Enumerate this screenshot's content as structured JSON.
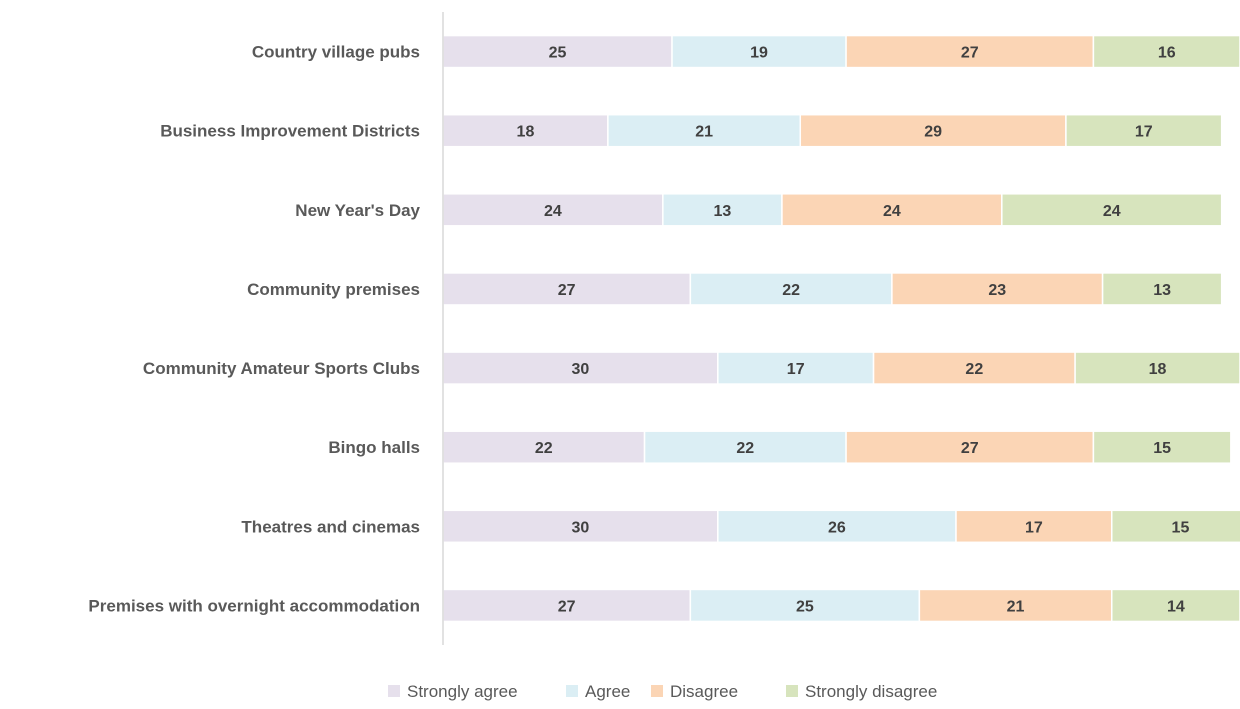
{
  "chart_data": {
    "type": "bar",
    "orientation": "horizontal",
    "stacked": true,
    "categories": [
      "Country village pubs",
      "Business Improvement Districts",
      "New Year's Day",
      "Community premises",
      "Community Amateur Sports Clubs",
      "Bingo halls",
      "Theatres and cinemas",
      "Premises with overnight accommodation"
    ],
    "series": [
      {
        "name": "Strongly agree",
        "color": "#e6e0ec",
        "values": [
          25,
          18,
          24,
          27,
          30,
          22,
          30,
          27
        ]
      },
      {
        "name": "Agree",
        "color": "#dbeef4",
        "values": [
          19,
          21,
          13,
          22,
          17,
          22,
          26,
          25
        ]
      },
      {
        "name": "Disagree",
        "color": "#fbd5b5",
        "values": [
          27,
          29,
          24,
          23,
          22,
          27,
          17,
          21
        ]
      },
      {
        "name": "Strongly disagree",
        "color": "#d7e4bd",
        "values": [
          16,
          17,
          24,
          13,
          18,
          15,
          15,
          14
        ]
      }
    ],
    "title": "",
    "xlabel": "",
    "ylabel": "",
    "xlim": [
      0,
      87
    ],
    "grid": false,
    "legend_position": "bottom",
    "data_labels": true
  }
}
